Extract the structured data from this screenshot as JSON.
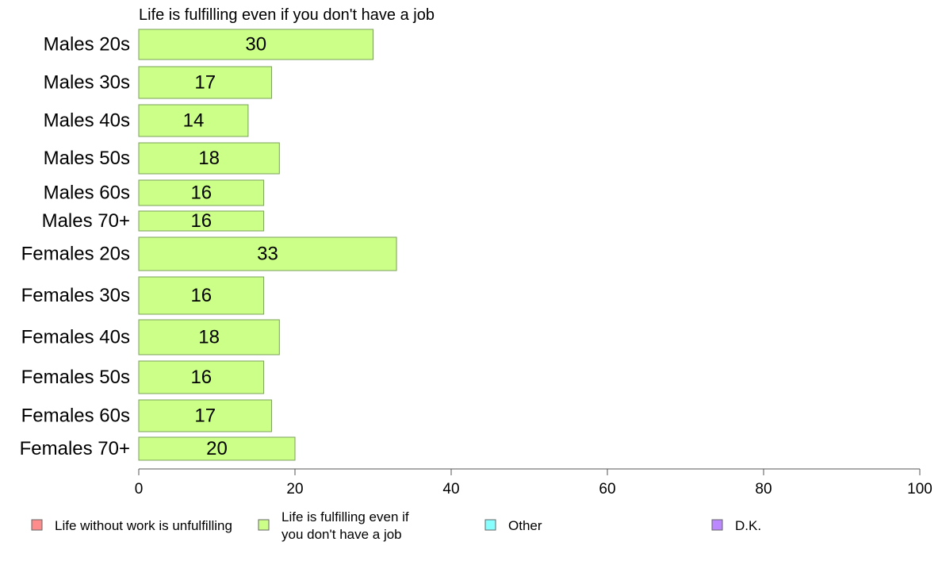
{
  "chart_data": {
    "type": "bar",
    "orientation": "horizontal",
    "title": "Life is fulfilling even if you don't have a job",
    "categories": [
      "Males 20s",
      "Males 30s",
      "Males 40s",
      "Males 50s",
      "Males 60s",
      "Males 70+",
      "Females 20s",
      "Females 30s",
      "Females 40s",
      "Females 50s",
      "Females 60s",
      "Females 70+"
    ],
    "values": [
      30,
      17,
      14,
      18,
      16,
      16,
      33,
      16,
      18,
      16,
      17,
      20
    ],
    "value_labels": [
      "30",
      "17",
      "14",
      "18",
      "16",
      "16",
      "33",
      "16",
      "18",
      "16",
      "17",
      "20"
    ],
    "xlim": [
      0,
      100
    ],
    "x_ticks": [
      0,
      20,
      40,
      60,
      80,
      100
    ],
    "x_tick_labels": [
      "0",
      "20",
      "40",
      "60",
      "80",
      "100"
    ],
    "grid": false,
    "bar_color": "#ccff88",
    "bar_stroke": "#7aa05a",
    "legend_placement": "bottom",
    "legend": [
      {
        "label": "Life without work is unfulfilling",
        "color": "#ff8c8c"
      },
      {
        "label": "Life is fulfilling even if you don't have a job",
        "lines": [
          "Life is fulfilling even if",
          "you don't have a job"
        ],
        "color": "#ccff88"
      },
      {
        "label": "Other",
        "color": "#88ffff"
      },
      {
        "label": "D.K.",
        "color": "#bb88ff"
      }
    ]
  }
}
